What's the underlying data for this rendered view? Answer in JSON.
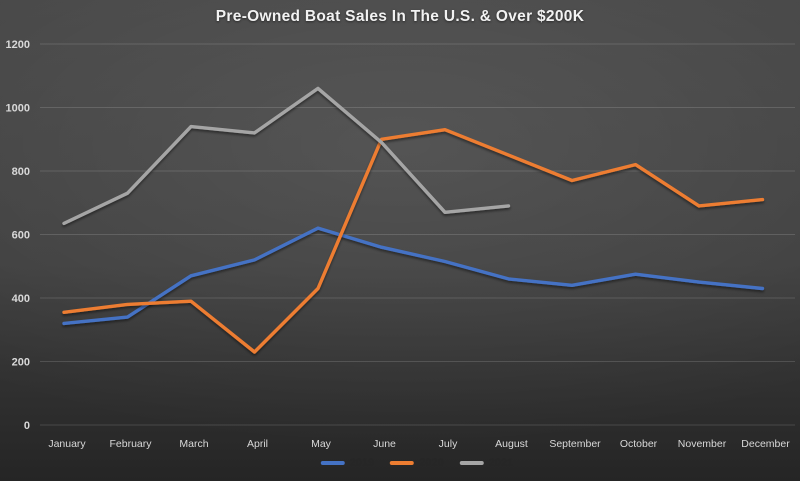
{
  "chart_data": {
    "type": "line",
    "title": "Pre-Owned Boat Sales In The U.S. & Over $200K",
    "categories": [
      "January",
      "February",
      "March",
      "April",
      "May",
      "June",
      "July",
      "August",
      "September",
      "October",
      "November",
      "December"
    ],
    "series": [
      {
        "name": "2019",
        "color": "#4472C4",
        "values": [
          320,
          340,
          470,
          520,
          620,
          560,
          515,
          460,
          440,
          475,
          450,
          430
        ]
      },
      {
        "name": "2020",
        "color": "#ED7D31",
        "values": [
          355,
          380,
          390,
          230,
          430,
          900,
          930,
          850,
          770,
          820,
          690,
          710
        ]
      },
      {
        "name": "2021",
        "color": "#A5A5A5",
        "values": [
          635,
          730,
          940,
          920,
          1060,
          890,
          670,
          690,
          null,
          null,
          null,
          null
        ]
      }
    ],
    "ylim": [
      0,
      1200
    ],
    "yticks": [
      0,
      200,
      400,
      600,
      800,
      1000,
      1200
    ],
    "grid": true,
    "legend_position": "bottom",
    "xlabel": "",
    "ylabel": "",
    "colors": {
      "background": "#3f3f3f",
      "gridline": "rgba(255,255,255,0.14)",
      "axis_text": "#d9d9d9",
      "title_text": "#f2f2f2",
      "legend_text": "#262626"
    }
  }
}
